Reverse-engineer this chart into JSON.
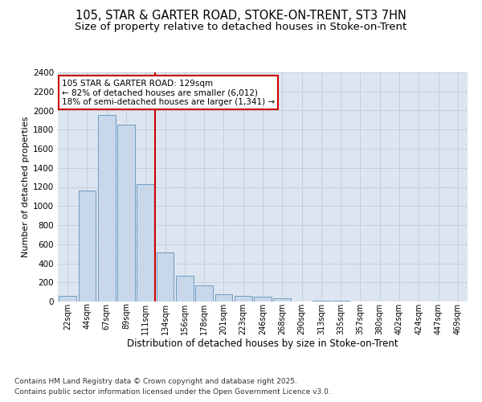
{
  "title1": "105, STAR & GARTER ROAD, STOKE-ON-TRENT, ST3 7HN",
  "title2": "Size of property relative to detached houses in Stoke-on-Trent",
  "xlabel": "Distribution of detached houses by size in Stoke-on-Trent",
  "ylabel": "Number of detached properties",
  "categories": [
    "22sqm",
    "44sqm",
    "67sqm",
    "89sqm",
    "111sqm",
    "134sqm",
    "156sqm",
    "178sqm",
    "201sqm",
    "223sqm",
    "246sqm",
    "268sqm",
    "290sqm",
    "313sqm",
    "335sqm",
    "357sqm",
    "380sqm",
    "402sqm",
    "424sqm",
    "447sqm",
    "469sqm"
  ],
  "values": [
    55,
    1160,
    1950,
    1850,
    1230,
    510,
    270,
    170,
    80,
    55,
    50,
    30,
    0,
    5,
    5,
    0,
    0,
    0,
    0,
    0,
    0
  ],
  "bar_color": "#c8d8ea",
  "bar_edge_color": "#6090bb",
  "vline_index": 5,
  "vline_color": "#cc0000",
  "annotation_line1": "105 STAR & GARTER ROAD: 129sqm",
  "annotation_line2": "← 82% of detached houses are smaller (6,012)",
  "annotation_line3": "18% of semi-detached houses are larger (1,341) →",
  "annotation_box_edgecolor": "#cc0000",
  "ylim_max": 2400,
  "ytick_step": 200,
  "grid_color": "#c0ccd8",
  "bg_color": "#dde6f0",
  "footnote1": "Contains HM Land Registry data © Crown copyright and database right 2025.",
  "footnote2": "Contains public sector information licensed under the Open Government Licence v3.0.",
  "title1_fontsize": 10.5,
  "title2_fontsize": 9.5,
  "xlabel_fontsize": 8.5,
  "ylabel_fontsize": 8,
  "annotation_fontsize": 7.5,
  "tick_fontsize": 7,
  "ytick_fontsize": 7.5,
  "footnote_fontsize": 6.5
}
